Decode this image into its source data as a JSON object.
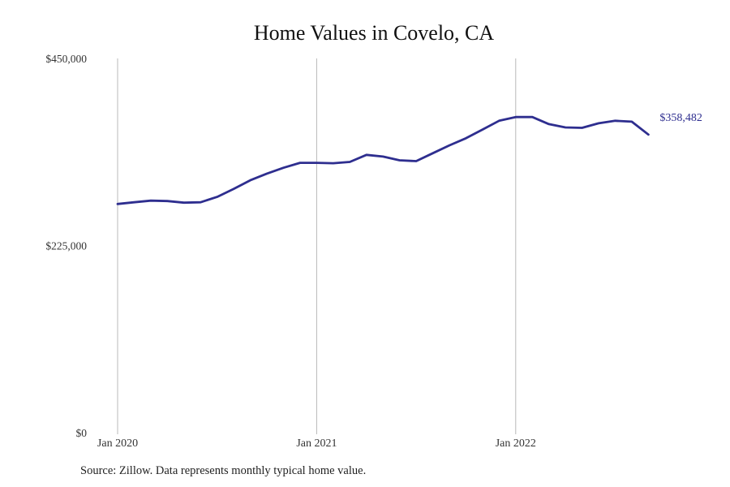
{
  "chart_data": {
    "type": "line",
    "title": "Home Values in Covelo, CA",
    "xlabel": "",
    "ylabel": "",
    "ylim": [
      0,
      450000
    ],
    "y_ticks": [
      "$0",
      "$225,000",
      "$450,000"
    ],
    "y_tick_values": [
      0,
      225000,
      450000
    ],
    "x_ticks": [
      "Jan 2020",
      "Jan 2021",
      "Jan 2022"
    ],
    "x_tick_index": [
      0,
      12,
      24
    ],
    "grid": "vertical lines at x ticks",
    "line_color": "#2e2e8f",
    "end_label": "$358,482",
    "x": [
      "Jan 2020",
      "Feb 2020",
      "Mar 2020",
      "Apr 2020",
      "May 2020",
      "Jun 2020",
      "Jul 2020",
      "Aug 2020",
      "Sep 2020",
      "Oct 2020",
      "Nov 2020",
      "Dec 2020",
      "Jan 2021",
      "Feb 2021",
      "Mar 2021",
      "Apr 2021",
      "May 2021",
      "Jun 2021",
      "Jul 2021",
      "Aug 2021",
      "Sep 2021",
      "Oct 2021",
      "Nov 2021",
      "Dec 2021",
      "Jan 2022",
      "Feb 2022",
      "Mar 2022",
      "Apr 2022",
      "May 2022",
      "Jun 2022",
      "Jul 2022",
      "Aug 2022",
      "Sep 2022"
    ],
    "series": [
      {
        "values": [
          275000,
          277000,
          279000,
          278500,
          276500,
          277000,
          283500,
          293000,
          303500,
          311500,
          318500,
          324500,
          324500,
          324000,
          325500,
          334000,
          332000,
          327500,
          326500,
          336000,
          345500,
          354000,
          364500,
          375000,
          379500,
          379500,
          371000,
          367000,
          366500,
          372000,
          375000,
          374000,
          358482
        ]
      }
    ]
  },
  "source_text": "Source: Zillow. Data represents monthly typical home value."
}
